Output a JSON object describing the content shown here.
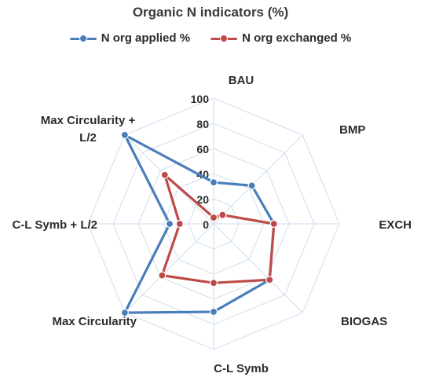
{
  "chart_data": {
    "type": "radar",
    "title": "Organic N indicators (%)",
    "categories": [
      "BAU",
      "BMP",
      "EXCH",
      "BIOGAS",
      "C-L Symb",
      "Max Circularity",
      "C-L Symb + L/2",
      "Max Circularity + L/2"
    ],
    "series": [
      {
        "name": "N org applied %",
        "color": "#4a7ebb",
        "values": [
          33,
          43,
          48,
          63,
          70,
          100,
          35,
          100
        ]
      },
      {
        "name": "N org exchanged %",
        "color": "#be4b48",
        "values": [
          5,
          10,
          48,
          63,
          47,
          58,
          27,
          55
        ]
      }
    ],
    "rlim": [
      0,
      100
    ],
    "ticks": [
      0,
      20,
      40,
      60,
      80,
      100
    ],
    "tick_labels": [
      "0",
      "20",
      "40",
      "60",
      "80",
      "100"
    ],
    "legend_position": "top",
    "grid": true
  }
}
